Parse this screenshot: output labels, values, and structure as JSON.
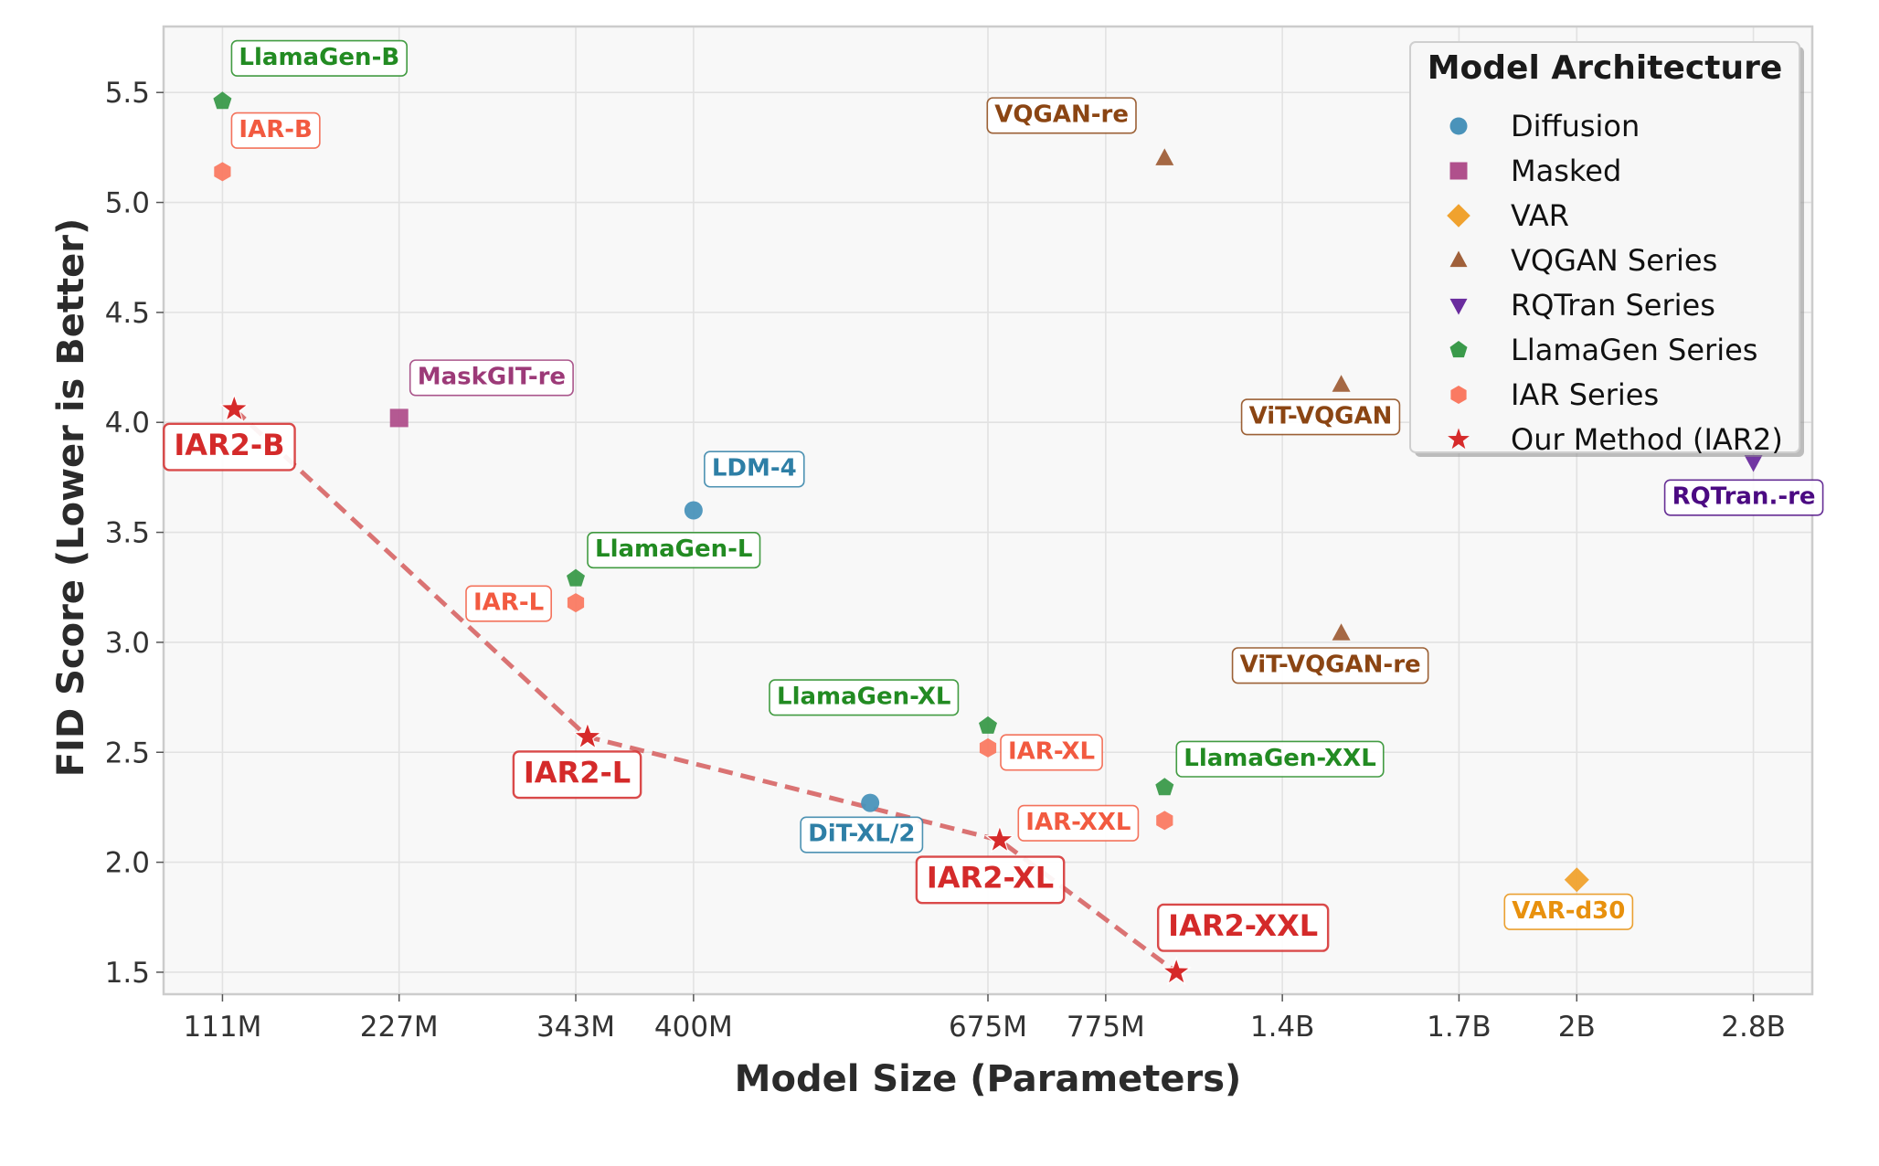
{
  "chart_data": {
    "type": "scatter",
    "title": "",
    "xlabel": "Model Size (Parameters)",
    "ylabel": "FID Score (Lower is Better)",
    "x_axis_kind": "ordinal position index (non-linear parameter scale)",
    "xlim": [
      -1,
      27
    ],
    "ylim": [
      1.4,
      5.8
    ],
    "grid": true,
    "x_ticks": [
      {
        "pos": 0,
        "label": "111M"
      },
      {
        "pos": 3,
        "label": "227M"
      },
      {
        "pos": 6,
        "label": "343M"
      },
      {
        "pos": 8,
        "label": "400M"
      },
      {
        "pos": 13,
        "label": "675M"
      },
      {
        "pos": 15,
        "label": "775M"
      },
      {
        "pos": 18,
        "label": "1.4B"
      },
      {
        "pos": 21,
        "label": "1.7B"
      },
      {
        "pos": 23,
        "label": "2B"
      },
      {
        "pos": 26,
        "label": "2.8B"
      }
    ],
    "y_ticks": [
      1.5,
      2.0,
      2.5,
      3.0,
      3.5,
      4.0,
      4.5,
      5.0,
      5.5
    ],
    "y_tick_labels": [
      "1.5",
      "2.0",
      "2.5",
      "3.0",
      "3.5",
      "4.0",
      "4.5",
      "5.0",
      "5.5"
    ],
    "legend": {
      "title": "Model Architecture",
      "position": "top-right"
    },
    "series": [
      {
        "name": "Diffusion",
        "marker": "circle",
        "color": "#4a93ba",
        "label_color": "#2e7fa6",
        "points": [
          {
            "label": "LDM-4",
            "x": 8,
            "y": 3.6
          },
          {
            "label": "DiT-XL/2",
            "x": 11,
            "y": 2.27
          }
        ]
      },
      {
        "name": "Masked",
        "marker": "square",
        "color": "#b0508c",
        "label_color": "#9c3a78",
        "points": [
          {
            "label": "MaskGIT-re",
            "x": 3,
            "y": 4.02
          }
        ]
      },
      {
        "name": "VAR",
        "marker": "diamond",
        "color": "#f0a22e",
        "label_color": "#e8910e",
        "points": [
          {
            "label": "VAR-d30",
            "x": 23,
            "y": 1.92
          }
        ]
      },
      {
        "name": "VQGAN Series",
        "marker": "triangle-up",
        "color": "#a0603a",
        "label_color": "#8b4513",
        "points": [
          {
            "label": "VQGAN-re",
            "x": 16,
            "y": 5.2
          },
          {
            "label": "ViT-VQGAN",
            "x": 19,
            "y": 4.17
          },
          {
            "label": "ViT-VQGAN-re",
            "x": 19,
            "y": 3.04
          }
        ]
      },
      {
        "name": "RQTran Series",
        "marker": "triangle-down",
        "color": "#6a2c9e",
        "label_color": "#4b0a82",
        "points": [
          {
            "label": "RQTran.-re",
            "x": 26,
            "y": 3.82
          }
        ]
      },
      {
        "name": "LlamaGen Series",
        "marker": "pentagon",
        "color": "#3a9a4a",
        "label_color": "#228b22",
        "points": [
          {
            "label": "LlamaGen-B",
            "x": 0,
            "y": 5.46
          },
          {
            "label": "LlamaGen-L",
            "x": 6,
            "y": 3.29
          },
          {
            "label": "LlamaGen-XL",
            "x": 13,
            "y": 2.62
          },
          {
            "label": "LlamaGen-XXL",
            "x": 16,
            "y": 2.34
          }
        ]
      },
      {
        "name": "IAR Series",
        "marker": "hexagon",
        "color": "#fa7a62",
        "label_color": "#f25a40",
        "points": [
          {
            "label": "IAR-B",
            "x": 0,
            "y": 5.14
          },
          {
            "label": "IAR-L",
            "x": 6,
            "y": 3.18
          },
          {
            "label": "IAR-XL",
            "x": 13,
            "y": 2.52
          },
          {
            "label": "IAR-XXL",
            "x": 16,
            "y": 2.19
          }
        ]
      },
      {
        "name": "Our Method (IAR2)",
        "marker": "star",
        "color": "#d62a2a",
        "label_color": "#d42a2a",
        "connect_line": {
          "style": "dashed",
          "color": "#d86c6c"
        },
        "points": [
          {
            "label": "IAR2-B",
            "x": 0.2,
            "y": 4.06
          },
          {
            "label": "IAR2-L",
            "x": 6.2,
            "y": 2.57
          },
          {
            "label": "IAR2-XL",
            "x": 13.2,
            "y": 2.1
          },
          {
            "label": "IAR2-XXL",
            "x": 16.2,
            "y": 1.5
          }
        ]
      }
    ]
  }
}
